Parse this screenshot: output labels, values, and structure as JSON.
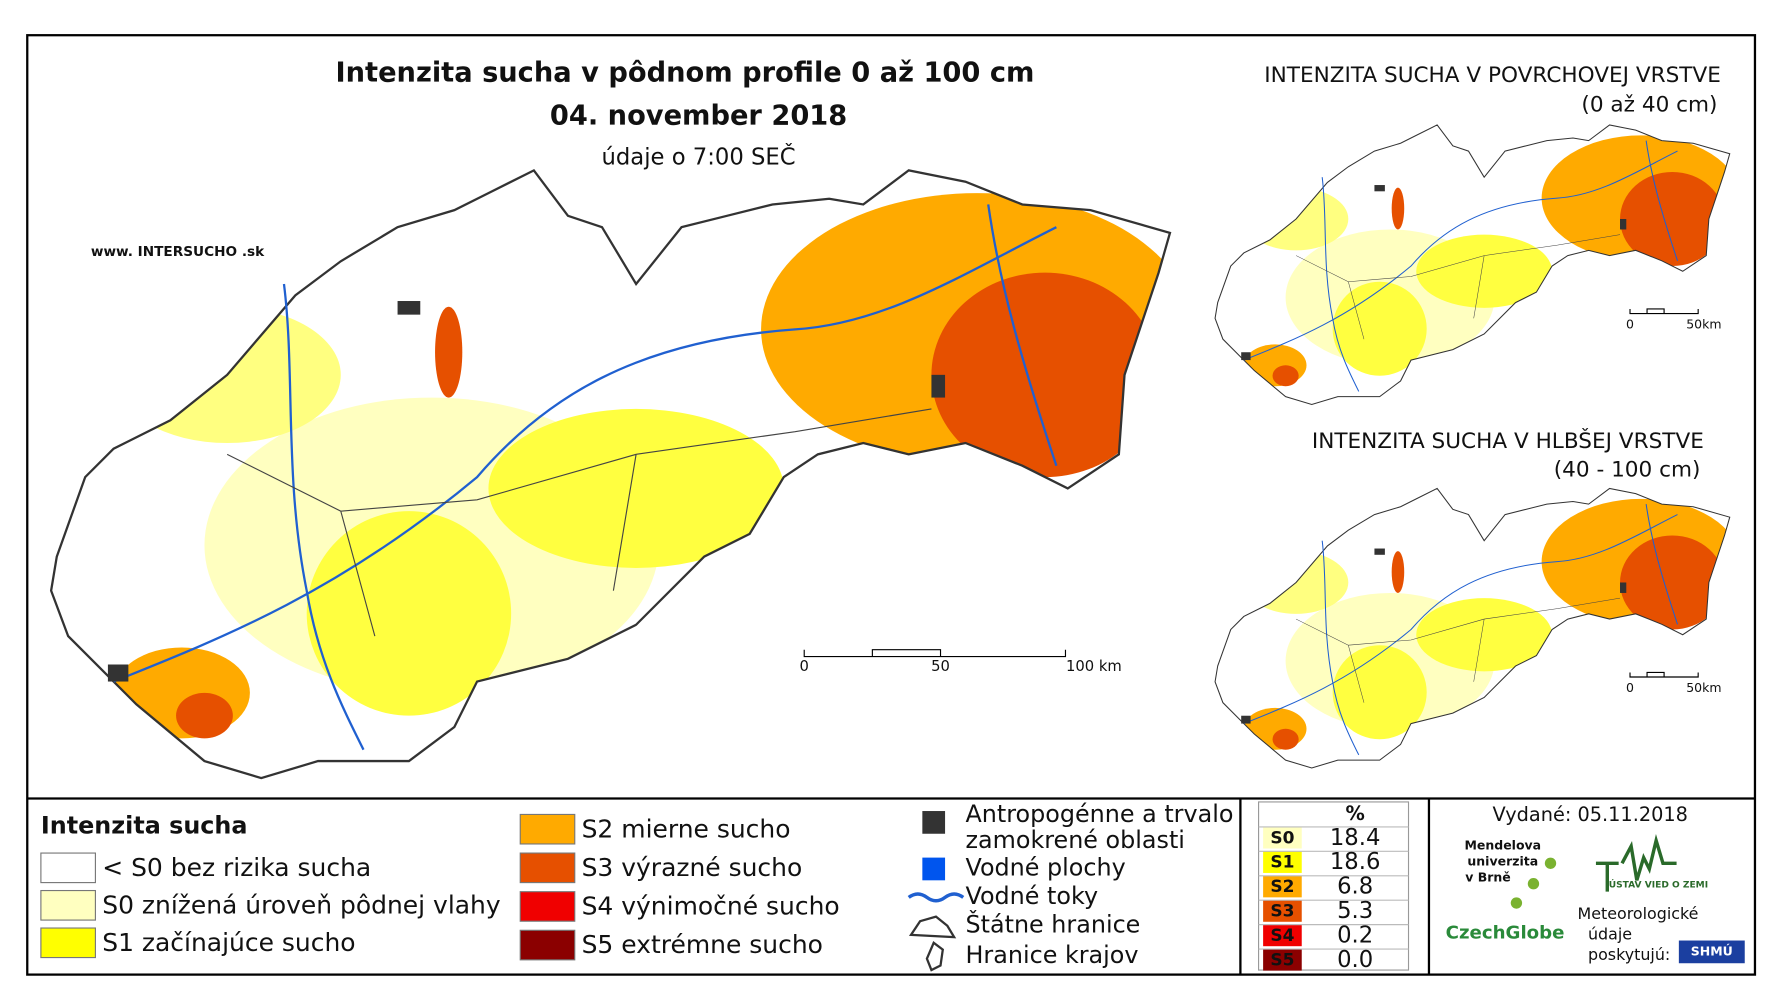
{
  "map": {
    "title": "Intenzita sucha v pôdnom profile 0 až 100 cm",
    "date": "04. november 2018",
    "subtitle": "údaje o 7:00 SEČ",
    "website": "www. INTERSUCHO .sk",
    "scale": [
      "0",
      "50",
      "100 km"
    ]
  },
  "insets": [
    {
      "title": "INTENZITA SUCHA V POVRCHOVEJ VRSTVE",
      "subtitle": "(0 až 40 cm)",
      "scale": [
        "0",
        "50km"
      ]
    },
    {
      "title": "INTENZITA SUCHA V HLBŠEJ VRSTVE",
      "subtitle": "(40 - 100 cm)",
      "scale": [
        "0",
        "50km"
      ]
    }
  ],
  "legend": {
    "title": "Intenzita sucha",
    "classes": [
      {
        "label": "< S0 bez rizika sucha",
        "color": "#ffffff"
      },
      {
        "label": "S0 znížená úroveň pôdnej vlahy",
        "color": "#ffffc0"
      },
      {
        "label": "S1 začínajúce sucho",
        "color": "#ffff00"
      },
      {
        "label": "S2 mierne sucho",
        "color": "#ffaa00"
      },
      {
        "label": "S3 výrazné sucho",
        "color": "#e65000"
      },
      {
        "label": "S4 výnimočné sucho",
        "color": "#f00000"
      },
      {
        "label": "S5 extrémne sucho",
        "color": "#8b0000"
      }
    ],
    "other": [
      {
        "label": [
          "Antropogénne a trvalo",
          "zamokrené oblasti"
        ]
      },
      {
        "label": [
          "Vodné plochy"
        ]
      },
      {
        "label": [
          "Vodné toky"
        ]
      },
      {
        "label": [
          "Štátne hranice"
        ]
      },
      {
        "label": [
          "Hranice krajov"
        ]
      }
    ]
  },
  "table": {
    "header": "%",
    "rows": [
      [
        "S0",
        "18.4"
      ],
      [
        "S1",
        "18.6"
      ],
      [
        "S2",
        "6.8"
      ],
      [
        "S3",
        "5.3"
      ],
      [
        "S4",
        "0.2"
      ],
      [
        "S5",
        "0.0"
      ]
    ]
  },
  "issued": "Vydané: 05.11.2018",
  "logos": {
    "mendelu": [
      "Mendelova",
      "univerzita",
      "v Brně"
    ],
    "czechglobe": "CzechGlobe",
    "uvz": "ÚSTAV VIED O ZEMI",
    "meteo": [
      "Meteorologické",
      "údaje",
      "poskytujú:"
    ],
    "shmu": "SHMÚ"
  }
}
